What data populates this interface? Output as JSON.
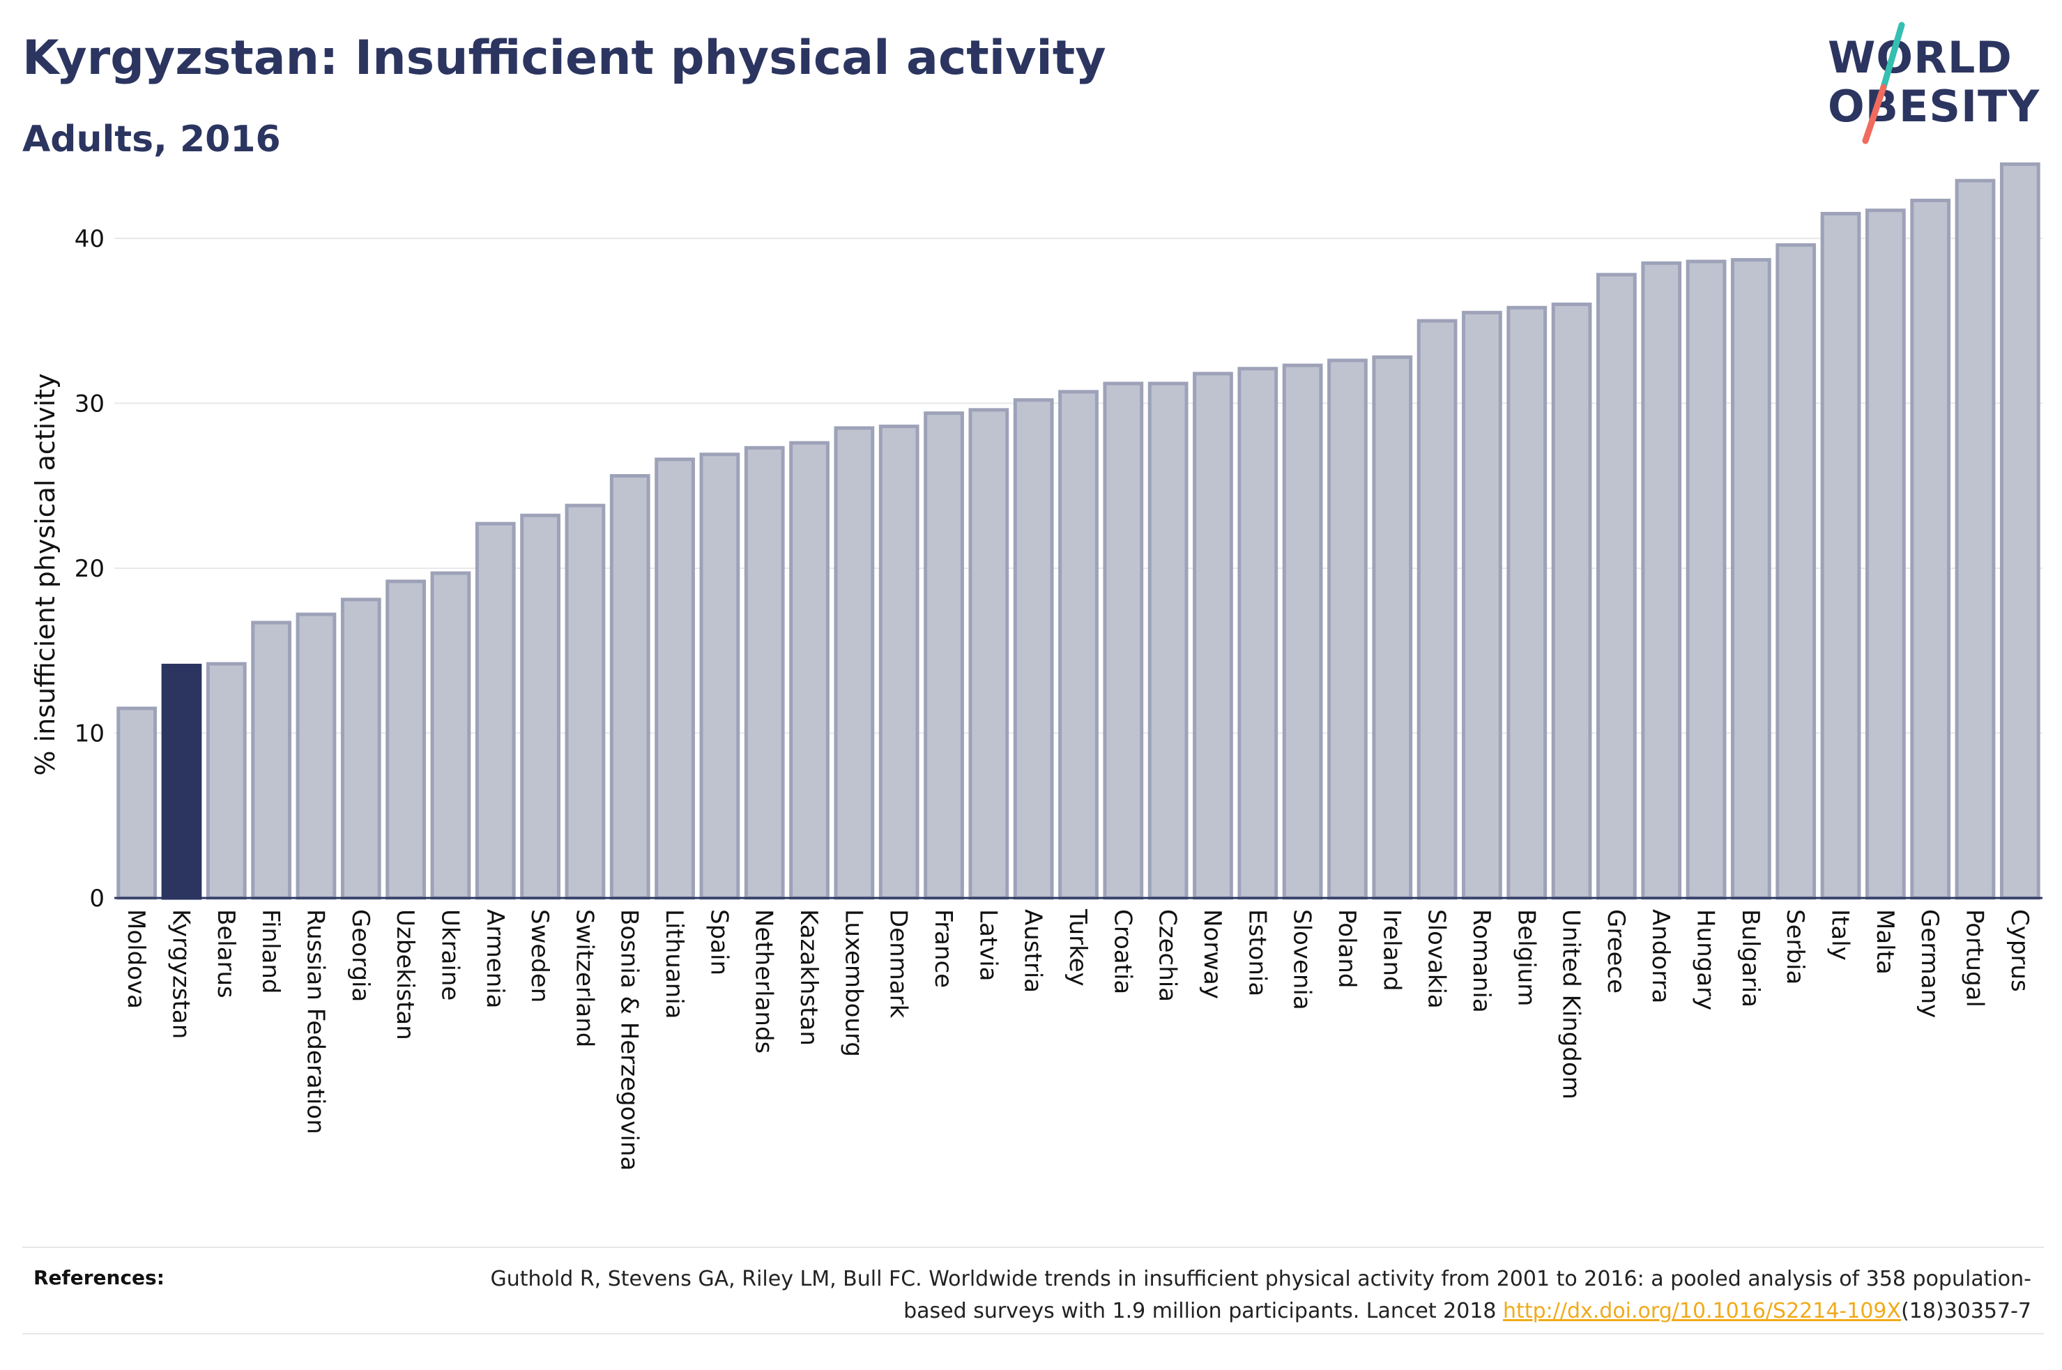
{
  "header": {
    "title": "Kyrgyzstan: Insufficient physical activity",
    "subtitle": "Adults, 2016"
  },
  "logo": {
    "line1": "WORLD",
    "line2": "OBESITY",
    "slash_colors": [
      "#35bfb1",
      "#ef6b5d"
    ]
  },
  "colors": {
    "highlight": "#2b3560",
    "bar_fill": "#bfc3d0",
    "bar_stroke": "#9da2b8",
    "grid": "#e8e8e8",
    "link": "#f0ab1b"
  },
  "chart_data": {
    "type": "bar",
    "title": "Kyrgyzstan: Insufficient physical activity",
    "subtitle": "Adults, 2016",
    "xlabel": "",
    "ylabel": "% insufficient physical activity",
    "ylim": [
      0,
      46
    ],
    "yticks": [
      0,
      10,
      20,
      30,
      40
    ],
    "grid": true,
    "highlight": "Kyrgyzstan",
    "categories": [
      "Moldova",
      "Kyrgyzstan",
      "Belarus",
      "Finland",
      "Russian Federation",
      "Georgia",
      "Uzbekistan",
      "Ukraine",
      "Armenia",
      "Sweden",
      "Switzerland",
      "Bosnia & Herzegovina",
      "Lithuania",
      "Spain",
      "Netherlands",
      "Kazakhstan",
      "Luxembourg",
      "Denmark",
      "France",
      "Latvia",
      "Austria",
      "Turkey",
      "Croatia",
      "Czechia",
      "Norway",
      "Estonia",
      "Slovenia",
      "Poland",
      "Ireland",
      "Slovakia",
      "Romania",
      "Belgium",
      "United Kingdom",
      "Greece",
      "Andorra",
      "Hungary",
      "Bulgaria",
      "Serbia",
      "Italy",
      "Malta",
      "Germany",
      "Portugal",
      "Cyprus"
    ],
    "values": [
      11.5,
      14.1,
      14.2,
      16.7,
      17.2,
      18.1,
      19.2,
      19.7,
      22.7,
      23.2,
      23.8,
      25.6,
      26.6,
      26.9,
      27.3,
      27.6,
      28.5,
      28.6,
      29.4,
      29.6,
      30.2,
      30.7,
      31.2,
      31.2,
      31.8,
      32.1,
      32.3,
      32.6,
      32.8,
      35.0,
      35.5,
      35.8,
      36.0,
      37.8,
      38.5,
      38.6,
      38.7,
      39.6,
      41.5,
      41.7,
      42.3,
      43.5,
      44.5
    ]
  },
  "references": {
    "label": "References:",
    "text_before_link": "Guthold R, Stevens GA, Riley LM, Bull FC. Worldwide trends in insufficient physical activity from 2001 to 2016: a pooled analysis of 358 population-based surveys with 1.9 million participants. Lancet 2018 ",
    "link": "http://dx.doi.org/10.1016/S2214-109X",
    "text_after_link": "(18)30357-7"
  }
}
